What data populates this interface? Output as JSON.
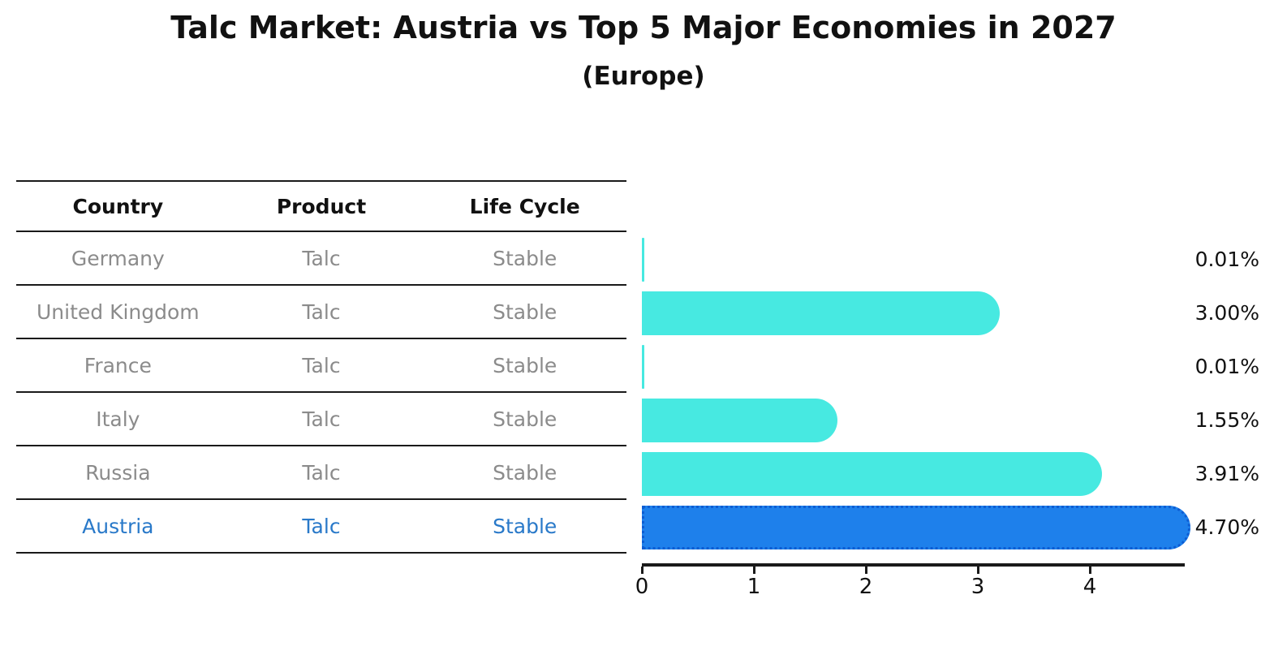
{
  "title": "Talc Market: Austria vs Top 5 Major Economies in 2027",
  "subtitle": "(Europe)",
  "table": {
    "headers": [
      "Country",
      "Product",
      "Life Cycle"
    ],
    "rows": [
      {
        "country": "Germany",
        "product": "Talc",
        "life_cycle": "Stable",
        "highlight": false
      },
      {
        "country": "United Kingdom",
        "product": "Talc",
        "life_cycle": "Stable",
        "highlight": false
      },
      {
        "country": "France",
        "product": "Talc",
        "life_cycle": "Stable",
        "highlight": false
      },
      {
        "country": "Italy",
        "product": "Talc",
        "life_cycle": "Stable",
        "highlight": false
      },
      {
        "country": "Russia",
        "product": "Talc",
        "life_cycle": "Stable",
        "highlight": false
      },
      {
        "country": "Austria",
        "product": "Talc",
        "life_cycle": "Stable",
        "highlight": true
      }
    ]
  },
  "chart_data": {
    "type": "bar",
    "orientation": "horizontal",
    "title": "Talc Market: Austria vs Top 5 Major Economies in 2027",
    "subtitle": "(Europe)",
    "categories": [
      "Germany",
      "United Kingdom",
      "France",
      "Italy",
      "Russia",
      "Austria"
    ],
    "values": [
      0.01,
      3.0,
      0.01,
      1.55,
      3.91,
      4.7
    ],
    "value_labels": [
      "0.01%",
      "3.00%",
      "0.01%",
      "1.55%",
      "3.91%",
      "4.70%"
    ],
    "highlight_index": 5,
    "xlabel": "",
    "ylabel": "",
    "xlim": [
      0,
      4.85
    ],
    "x_ticks": [
      "0",
      "1",
      "2",
      "3",
      "4"
    ],
    "grid": false,
    "legend": false,
    "bar_color": "#47e9e1",
    "highlight_bar_color": "#1e80eb",
    "highlight_border_color": "#0d5dd3",
    "highlight_text_color": "#2979c9",
    "row_text_color": "#8b8b8b",
    "axis_color": "#1a1a1a"
  }
}
